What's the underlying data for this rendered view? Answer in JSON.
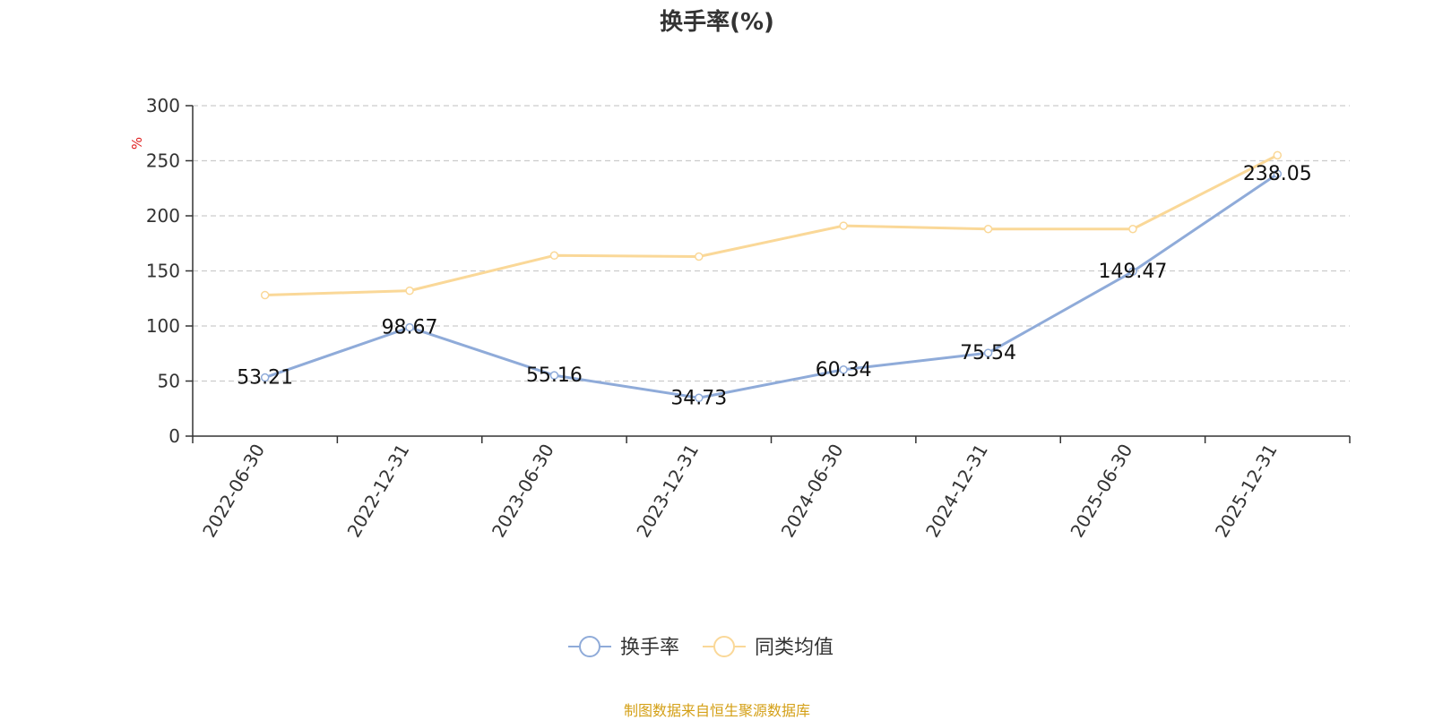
{
  "chart_data": {
    "type": "line",
    "title": "换手率(%)",
    "ylabel": "%",
    "xlabel": "",
    "ylim": [
      0,
      300
    ],
    "yticks": [
      0,
      50,
      100,
      150,
      200,
      250,
      300
    ],
    "grid": true,
    "categories": [
      "2022-06-30",
      "2022-12-31",
      "2023-06-30",
      "2023-12-31",
      "2024-06-30",
      "2024-12-31",
      "2025-06-30",
      "2025-12-31"
    ],
    "series": [
      {
        "name": "换手率",
        "color": "#8fabd9",
        "values": [
          53.21,
          98.67,
          55.16,
          34.73,
          60.34,
          75.54,
          149.47,
          238.05
        ],
        "labels": [
          "53.21",
          "98.67",
          "55.16",
          "34.73",
          "60.34",
          "75.54",
          "149.47",
          "238.05"
        ]
      },
      {
        "name": "同类均值",
        "color": "#fad898",
        "values": [
          128,
          132,
          164,
          163,
          191,
          188,
          188,
          255
        ]
      }
    ],
    "legend_position": "bottom-center",
    "source": "制图数据来自恒生聚源数据库",
    "source_color": "#d4a017",
    "ylabel_color": "#e02020"
  }
}
